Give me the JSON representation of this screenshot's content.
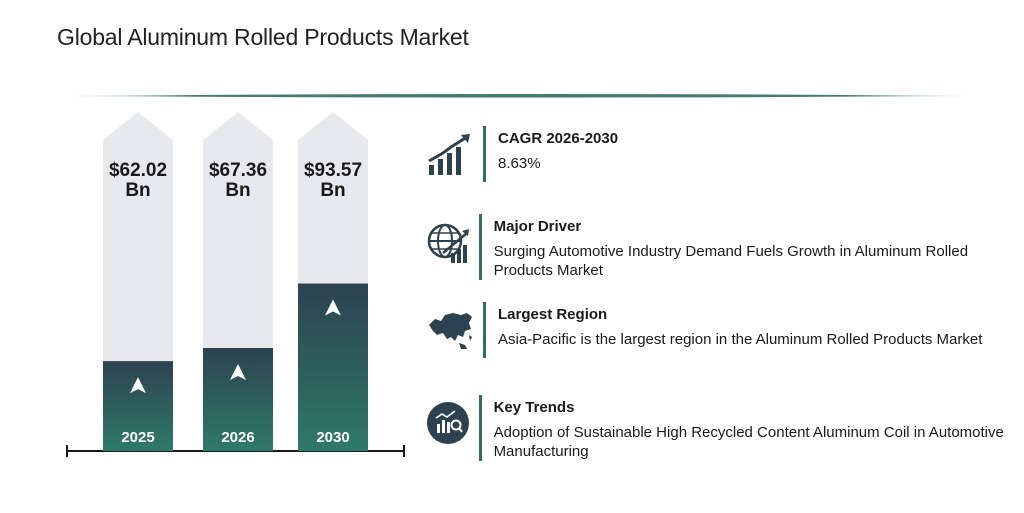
{
  "title": "Global Aluminum Rolled Products Market",
  "colors": {
    "accent": "#2f6e61",
    "dark": "#2d4250",
    "track": "#e8e9ee"
  },
  "chart_data": {
    "type": "bar",
    "categories": [
      "2025",
      "2026",
      "2030"
    ],
    "values": [
      62.02,
      67.36,
      93.57
    ],
    "value_labels": [
      {
        "amount": "$62.02",
        "unit": "Bn"
      },
      {
        "amount": "$67.36",
        "unit": "Bn"
      },
      {
        "amount": "$93.57",
        "unit": "Bn"
      }
    ],
    "unit": "USD Bn"
  },
  "cards": [
    {
      "icon": "growth-chart-icon",
      "head": "CAGR 2026-2030",
      "body": "8.63%"
    },
    {
      "icon": "globe-growth-icon",
      "head": "Major Driver",
      "body": "Surging Automotive Industry Demand Fuels Growth in Aluminum Rolled Products Market"
    },
    {
      "icon": "asia-map-icon",
      "head": "Largest Region",
      "body": "Asia-Pacific is the largest region in the Aluminum Rolled Products Market"
    },
    {
      "icon": "analytics-icon",
      "head": "Key Trends",
      "body": "Adoption of Sustainable High Recycled Content Aluminum Coil in Automotive Manufacturing"
    }
  ]
}
